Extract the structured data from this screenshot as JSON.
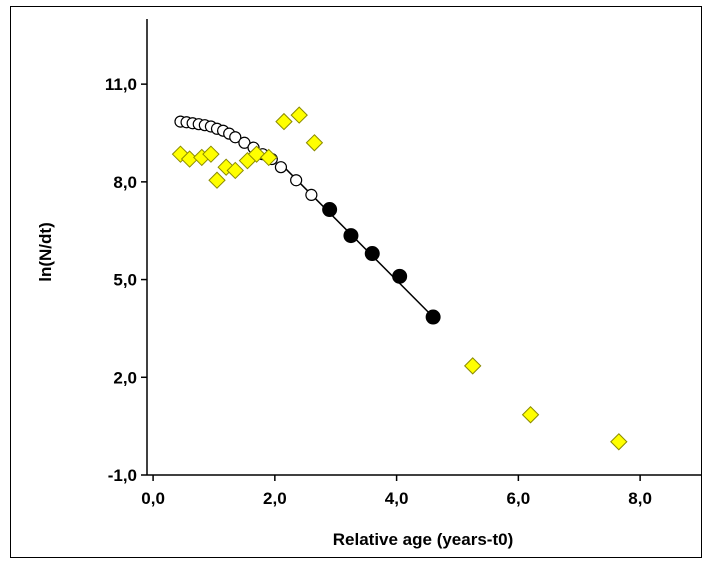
{
  "chart_data": {
    "type": "scatter",
    "title": "",
    "xlabel": "Relative age (years-t0)",
    "ylabel": "ln(N/dt)",
    "xlim": [
      -0.1,
      9.0
    ],
    "ylim": [
      -1.0,
      13.0
    ],
    "x_ticks": [
      0.0,
      2.0,
      4.0,
      6.0,
      8.0
    ],
    "x_tick_labels": [
      "0,0",
      "2,0",
      "4,0",
      "6,0",
      "8,0"
    ],
    "y_ticks": [
      -1.0,
      2.0,
      5.0,
      8.0,
      11.0
    ],
    "y_tick_labels": [
      "-1,0",
      "2,0",
      "5,0",
      "8,0",
      "11,0"
    ],
    "grid": false,
    "series": [
      {
        "marker": "open-circle",
        "color": "#ffffff",
        "points": [
          [
            0.45,
            9.85
          ],
          [
            0.55,
            9.83
          ],
          [
            0.65,
            9.8
          ],
          [
            0.75,
            9.77
          ],
          [
            0.85,
            9.74
          ],
          [
            0.95,
            9.7
          ],
          [
            1.05,
            9.63
          ],
          [
            1.15,
            9.57
          ],
          [
            1.25,
            9.48
          ],
          [
            1.35,
            9.37
          ],
          [
            1.5,
            9.2
          ],
          [
            1.65,
            9.05
          ],
          [
            1.8,
            8.85
          ],
          [
            1.95,
            8.7
          ],
          [
            2.1,
            8.45
          ],
          [
            2.35,
            8.05
          ],
          [
            2.6,
            7.6
          ]
        ]
      },
      {
        "marker": "filled-circle",
        "color": "#000000",
        "points": [
          [
            2.9,
            7.15
          ],
          [
            3.25,
            6.35
          ],
          [
            3.6,
            5.8
          ],
          [
            4.05,
            5.1
          ],
          [
            4.6,
            3.85
          ]
        ]
      },
      {
        "marker": "diamond",
        "color": "#ffff00",
        "points": [
          [
            0.45,
            8.85
          ],
          [
            0.6,
            8.7
          ],
          [
            0.8,
            8.75
          ],
          [
            0.95,
            8.85
          ],
          [
            1.05,
            8.05
          ],
          [
            1.2,
            8.45
          ],
          [
            1.35,
            8.35
          ],
          [
            1.55,
            8.65
          ],
          [
            1.7,
            8.85
          ],
          [
            1.9,
            8.75
          ],
          [
            2.15,
            9.85
          ],
          [
            2.4,
            10.05
          ],
          [
            2.65,
            9.2
          ],
          [
            5.25,
            2.35
          ],
          [
            6.2,
            0.85
          ],
          [
            7.65,
            0.02
          ]
        ]
      }
    ],
    "fit_line": {
      "from": [
        2.1,
        8.55
      ],
      "to": [
        4.6,
        3.85
      ]
    }
  }
}
